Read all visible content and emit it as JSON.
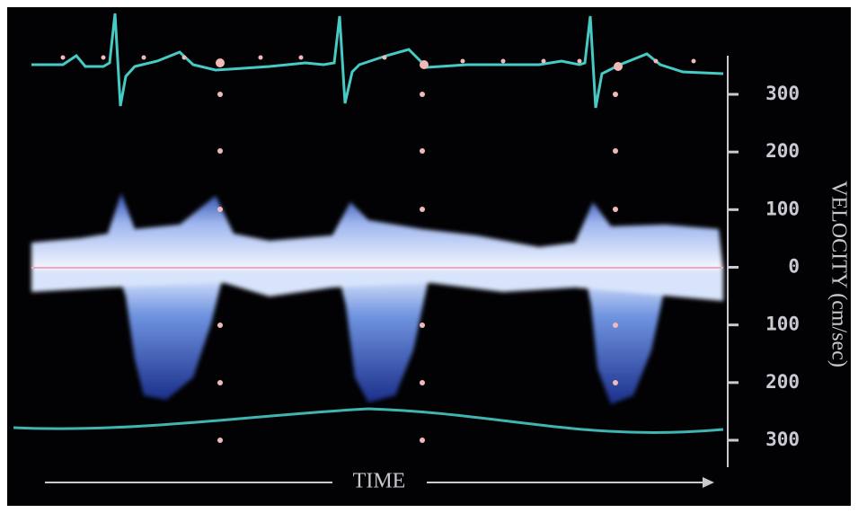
{
  "velocity_axis": {
    "title": "VELOCITY (cm/sec)",
    "ticks": [
      "300",
      "200",
      "100",
      "0",
      "100",
      "200",
      "300"
    ]
  },
  "time_axis": {
    "title": "TIME"
  }
}
